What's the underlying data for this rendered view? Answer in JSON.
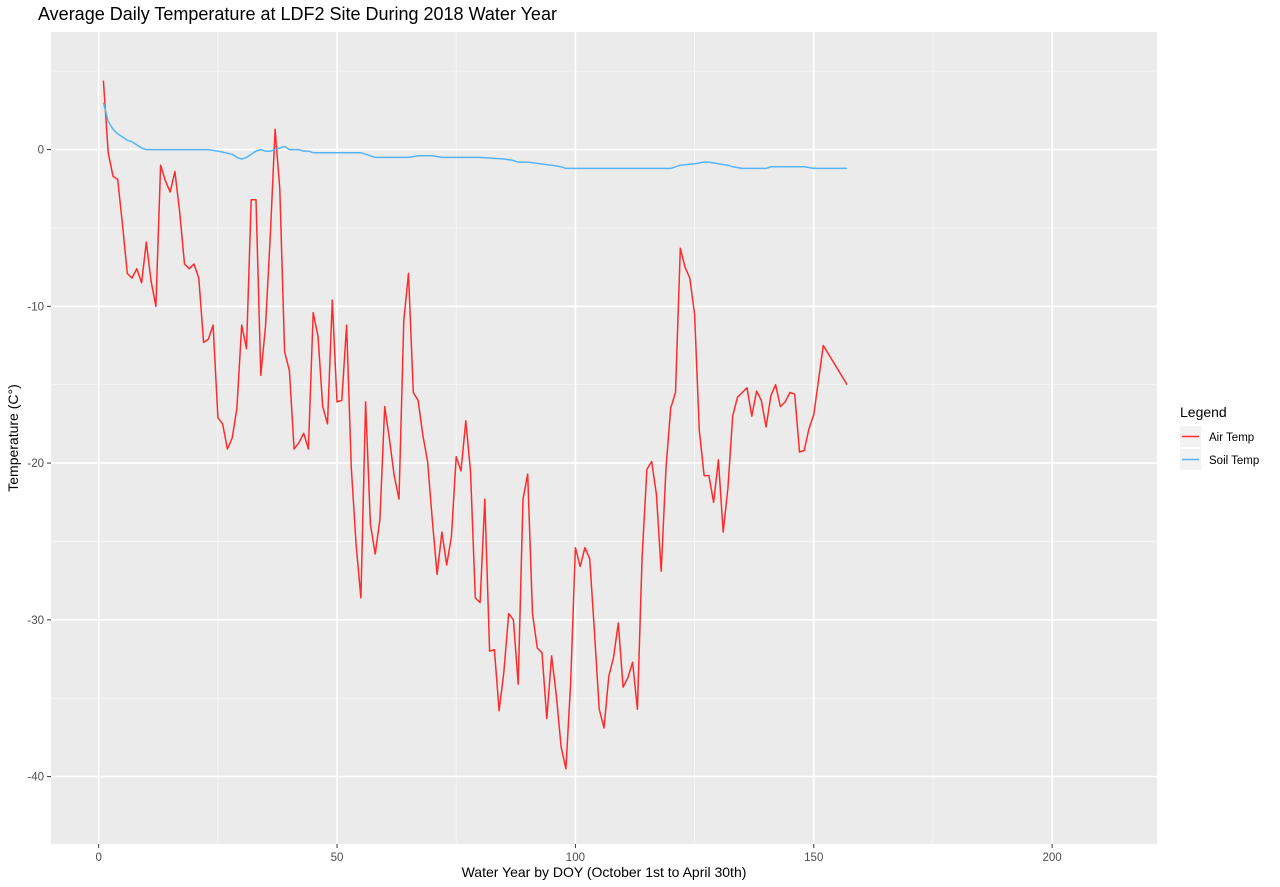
{
  "chart_data": {
    "type": "line",
    "title": "Average Daily Temperature at LDF2 Site During 2018 Water Year",
    "xlabel": "Water Year by DOY (October 1st to April 30th)",
    "ylabel": "Temperature (C°)",
    "xlim": [
      -10,
      222
    ],
    "ylim": [
      -44.3,
      7.5
    ],
    "x_ticks": [
      0,
      50,
      100,
      150,
      200
    ],
    "y_ticks": [
      0,
      -10,
      -20,
      -30,
      -40
    ],
    "grid": true,
    "legend": {
      "title": "Legend",
      "position": "right",
      "entries": [
        {
          "label": "Air Temp",
          "color": "#ff2b2b"
        },
        {
          "label": "Soil Temp",
          "color": "#56b4f9"
        }
      ]
    },
    "series": [
      {
        "name": "Air Temp",
        "color": "#ff2b2b",
        "x": [
          1,
          2,
          3,
          4,
          5,
          6,
          7,
          8,
          9,
          10,
          11,
          12,
          13,
          14,
          15,
          16,
          17,
          18,
          19,
          20,
          21,
          22,
          23,
          24,
          25,
          26,
          27,
          28,
          29,
          30,
          31,
          32,
          33,
          34,
          35,
          36,
          37,
          38,
          39,
          40,
          41,
          42,
          43,
          44,
          45,
          46,
          47,
          48,
          49,
          50,
          51,
          52,
          53,
          54,
          55,
          56,
          57,
          58,
          59,
          60,
          61,
          62,
          63,
          64,
          65,
          66,
          67,
          68,
          69,
          70,
          71,
          72,
          73,
          74,
          75,
          76,
          77,
          78,
          79,
          80,
          81,
          82,
          83,
          84,
          85,
          86,
          87,
          88,
          89,
          90,
          91,
          92,
          93,
          94,
          95,
          96,
          97,
          98,
          99,
          100,
          101,
          102,
          103,
          104,
          105,
          106,
          107,
          108,
          109,
          110,
          111,
          112,
          113,
          114,
          115,
          116,
          117,
          118,
          119,
          120,
          121,
          122,
          123,
          124,
          125,
          126,
          127,
          128,
          129,
          130,
          131,
          132,
          133,
          134,
          135,
          136,
          137,
          138,
          139,
          140,
          141,
          142,
          143,
          144,
          145,
          146,
          147,
          148,
          149,
          150,
          152,
          157
        ],
        "y": [
          4.4,
          -0.2,
          -1.7,
          -1.9,
          -4.8,
          -7.9,
          -8.2,
          -7.6,
          -8.5,
          -5.9,
          -8.4,
          -10.0,
          -1.0,
          -2.0,
          -2.7,
          -1.4,
          -4.0,
          -7.3,
          -7.6,
          -7.3,
          -8.2,
          -12.3,
          -12.1,
          -11.2,
          -17.1,
          -17.5,
          -19.1,
          -18.4,
          -16.5,
          -11.2,
          -12.7,
          -3.2,
          -3.2,
          -14.4,
          -11.3,
          -5.5,
          1.3,
          -2.5,
          -12.9,
          -14.1,
          -19.1,
          -18.7,
          -18.1,
          -19.1,
          -10.4,
          -11.9,
          -16.4,
          -17.5,
          -9.6,
          -16.1,
          -16.0,
          -11.2,
          -20.3,
          -25.2,
          -28.6,
          -16.1,
          -23.9,
          -25.8,
          -23.6,
          -16.4,
          -18.5,
          -20.8,
          -22.3,
          -10.9,
          -7.9,
          -15.5,
          -16.0,
          -18.2,
          -19.9,
          -23.7,
          -27.1,
          -24.4,
          -26.5,
          -24.7,
          -19.6,
          -20.5,
          -17.3,
          -20.5,
          -28.6,
          -28.9,
          -22.3,
          -32.0,
          -31.9,
          -35.8,
          -33.3,
          -29.6,
          -30.0,
          -34.1,
          -22.3,
          -20.7,
          -29.6,
          -31.8,
          -32.1,
          -36.3,
          -32.3,
          -34.8,
          -38.1,
          -39.5,
          -34.1,
          -25.4,
          -26.6,
          -25.4,
          -26.1,
          -30.8,
          -35.7,
          -36.9,
          -33.6,
          -32.4,
          -30.2,
          -34.3,
          -33.7,
          -32.7,
          -35.7,
          -26.0,
          -20.4,
          -19.9,
          -22.0,
          -26.9,
          -20.3,
          -16.5,
          -15.5,
          -6.3,
          -7.5,
          -8.2,
          -10.5,
          -17.9,
          -20.8,
          -20.8,
          -22.5,
          -19.8,
          -24.4,
          -21.6,
          -17.0,
          -15.8,
          -15.5,
          -15.2,
          -17.0,
          -15.4,
          -16.0,
          -17.7,
          -15.7,
          -15.0,
          -16.4,
          -16.1,
          -15.5,
          -15.6,
          -19.3,
          -19.2,
          -17.8,
          -16.9,
          -12.5,
          -15.0
        ]
      },
      {
        "name": "Soil Temp",
        "color": "#56b4f9",
        "x": [
          1,
          2,
          3,
          4,
          5,
          6,
          7,
          8,
          9,
          10,
          20,
          23,
          25,
          28,
          29,
          30,
          31,
          32,
          33,
          34,
          35,
          36,
          37,
          38,
          39,
          40,
          41,
          42,
          43,
          44,
          45,
          50,
          55,
          57,
          58,
          60,
          65,
          67,
          70,
          72,
          75,
          80,
          85,
          87,
          88,
          90,
          95,
          97,
          98,
          100,
          110,
          115,
          118,
          120,
          122,
          125,
          127,
          128,
          130,
          132,
          133,
          135,
          140,
          141,
          143,
          148,
          150,
          157
        ],
        "y": [
          3.0,
          1.8,
          1.3,
          1.0,
          0.8,
          0.6,
          0.5,
          0.3,
          0.1,
          0.0,
          0.0,
          0.0,
          -0.1,
          -0.3,
          -0.5,
          -0.6,
          -0.5,
          -0.3,
          -0.1,
          0.0,
          -0.1,
          -0.1,
          0.0,
          0.1,
          0.2,
          0.0,
          0.0,
          0.0,
          -0.1,
          -0.1,
          -0.2,
          -0.2,
          -0.2,
          -0.4,
          -0.5,
          -0.5,
          -0.5,
          -0.4,
          -0.4,
          -0.5,
          -0.5,
          -0.5,
          -0.6,
          -0.7,
          -0.8,
          -0.8,
          -1.0,
          -1.1,
          -1.2,
          -1.2,
          -1.2,
          -1.2,
          -1.2,
          -1.2,
          -1.0,
          -0.9,
          -0.8,
          -0.8,
          -0.9,
          -1.0,
          -1.1,
          -1.2,
          -1.2,
          -1.1,
          -1.1,
          -1.1,
          -1.2,
          -1.2
        ]
      }
    ]
  }
}
